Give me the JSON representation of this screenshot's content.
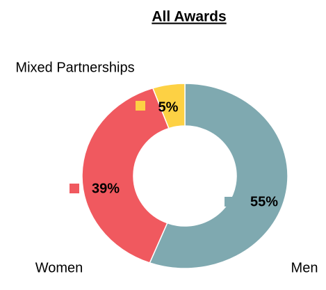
{
  "chart_data": {
    "type": "donut",
    "title": "All Awards",
    "categories": [
      "Men",
      "Women",
      "Mixed Partnerships"
    ],
    "values": [
      55,
      39,
      5
    ],
    "value_labels": [
      "55%",
      "39%",
      "5%"
    ],
    "colors": [
      "#7fa9b0",
      "#f0595f",
      "#fdd144"
    ]
  }
}
